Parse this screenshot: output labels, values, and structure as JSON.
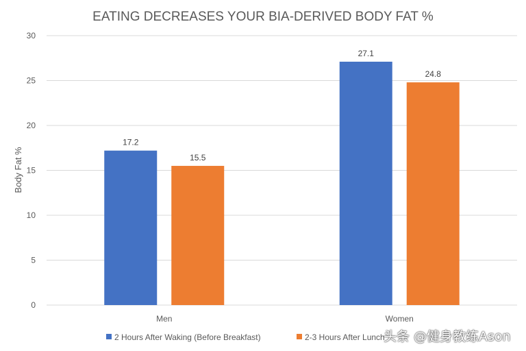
{
  "chart_data": {
    "type": "bar",
    "title": "EATING DECREASES YOUR BIA-DERIVED BODY FAT %",
    "xlabel": "",
    "ylabel": "Body Fat %",
    "categories": [
      "Men",
      "Women"
    ],
    "ylim": [
      0,
      30
    ],
    "yticks": [
      0,
      5,
      10,
      15,
      20,
      25,
      30
    ],
    "grid": true,
    "legend_position": "bottom",
    "series": [
      {
        "name": "2 Hours After Waking (Before Breakfast)",
        "values": [
          17.2,
          27.1
        ],
        "color": "#4472C4"
      },
      {
        "name": "2-3 Hours After Lunch",
        "values": [
          15.5,
          24.8
        ],
        "color": "#ED7D31"
      }
    ]
  },
  "watermark": "头条 @健身教练Ason"
}
